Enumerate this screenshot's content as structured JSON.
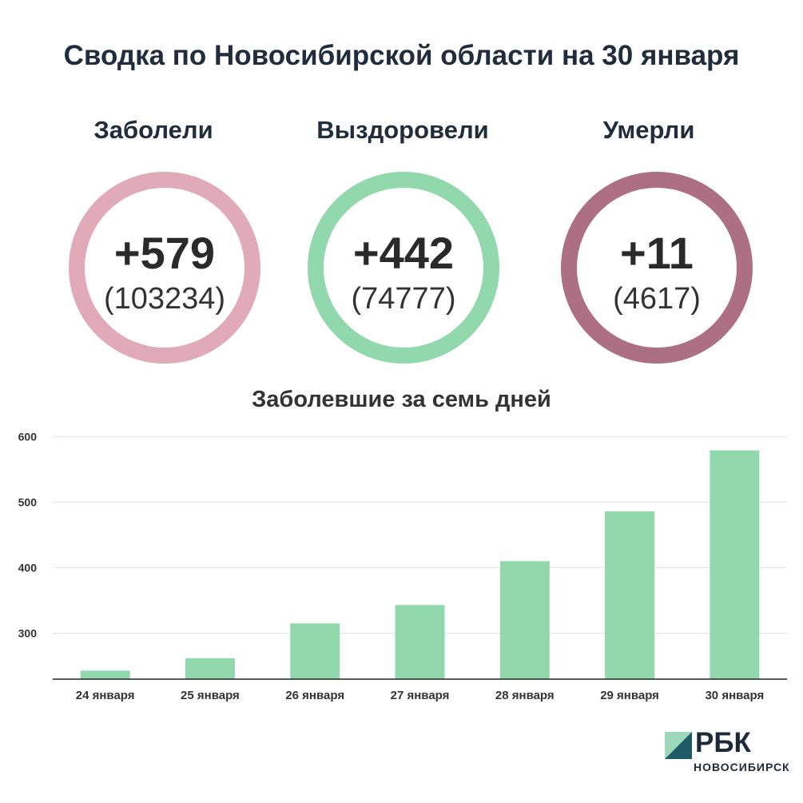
{
  "title": "Сводка по Новосибирской области на 30 января",
  "stats": [
    {
      "label": "Заболели",
      "value": "+579",
      "total": "(103234)",
      "color": "#e0aab9"
    },
    {
      "label": "Выздоровели",
      "value": "+442",
      "total": "(74777)",
      "color": "#92d8ad"
    },
    {
      "label": "Умерли",
      "value": "+11",
      "total": "(4617)",
      "color": "#ad6f84"
    }
  ],
  "chart_data": {
    "type": "bar",
    "title": "Заболевшие за семь дней",
    "categories": [
      "24 января",
      "25 января",
      "26 января",
      "27 января",
      "28 января",
      "29 января",
      "30 января"
    ],
    "values": [
      243,
      262,
      315,
      343,
      410,
      486,
      579
    ],
    "ylim": [
      230,
      620
    ],
    "yticks": [
      300,
      400,
      500,
      600
    ],
    "bar_color": "#92d8ad",
    "grid": true
  },
  "logo": {
    "name": "РБК",
    "sub": "НОВОСИБИРСК"
  }
}
